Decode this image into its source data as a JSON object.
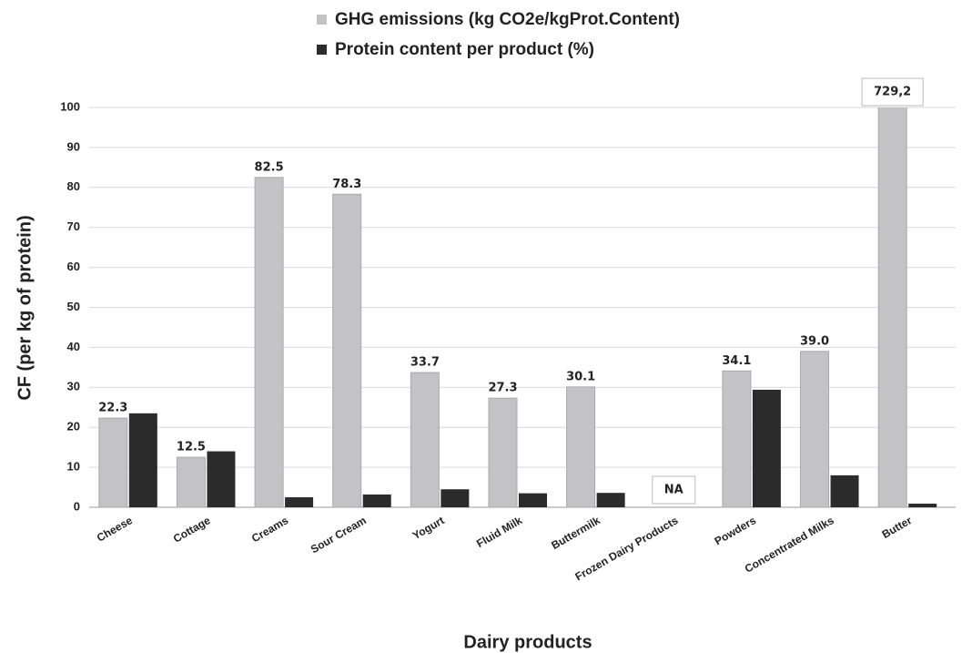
{
  "chart_data": {
    "type": "bar",
    "xlabel": "Dairy products",
    "ylabel": "CF (per kg of protein)",
    "categories": [
      "Cheese",
      "Cottage",
      "Creams",
      "Sour Cream",
      "Yogurt",
      "Fluid Milk",
      "Buttermilk",
      "Frozen Dairy Products",
      "Powders",
      "Concentrated Milks",
      "Butter"
    ],
    "series": [
      {
        "name": "GHG emissions (kg CO2e/kgProt.Content)",
        "color": "#c3c3c5",
        "values": [
          22.3,
          12.5,
          82.5,
          78.3,
          33.7,
          27.3,
          30.1,
          null,
          34.1,
          39.0,
          729.2
        ],
        "value_labels": [
          "22.3",
          "12.5",
          "82.5",
          "78.3",
          "33.7",
          "27.3",
          "30.1",
          "NA",
          "34.1",
          "39.0",
          "729,2"
        ]
      },
      {
        "name": "Protein content per product (%)",
        "color": "#2b2b2b",
        "values": [
          23.5,
          14,
          2.5,
          3.2,
          4.5,
          3.5,
          3.6,
          null,
          29.4,
          8,
          0.9
        ]
      }
    ],
    "ylim": [
      0,
      100
    ],
    "yticks": [
      0,
      10,
      20,
      30,
      40,
      50,
      60,
      70,
      80,
      90,
      100
    ],
    "grid": true
  }
}
